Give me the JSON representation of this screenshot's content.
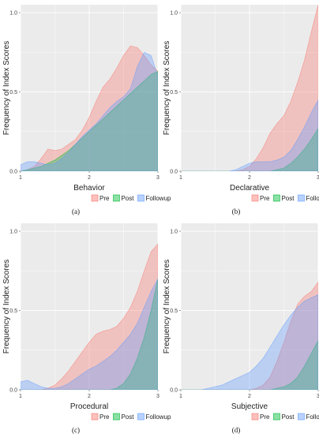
{
  "chart_data": [
    {
      "type": "area",
      "panel_label": "(a)",
      "xlabel": "Behavior",
      "ylabel": "Frequency of Index Scores",
      "xlim": [
        1,
        3
      ],
      "ylim": [
        0,
        1.05
      ],
      "x_ticks": [
        1,
        2,
        3
      ],
      "y_ticks": [
        "0.0",
        "0.5",
        "1.0"
      ],
      "legend": [
        "Pre",
        "Post",
        "Followup"
      ],
      "series": [
        {
          "name": "Pre",
          "color": "#f8766d",
          "x": [
            1.0,
            1.1,
            1.2,
            1.3,
            1.4,
            1.5,
            1.6,
            1.7,
            1.8,
            1.9,
            2.0,
            2.1,
            2.2,
            2.3,
            2.4,
            2.5,
            2.6,
            2.7,
            2.8,
            2.9,
            3.0
          ],
          "values": [
            0.0,
            0.01,
            0.03,
            0.08,
            0.14,
            0.13,
            0.14,
            0.17,
            0.2,
            0.26,
            0.34,
            0.44,
            0.53,
            0.58,
            0.65,
            0.73,
            0.79,
            0.78,
            0.73,
            0.67,
            0.63
          ]
        },
        {
          "name": "Post",
          "color": "#00ba38",
          "x": [
            1.0,
            1.1,
            1.2,
            1.3,
            1.4,
            1.5,
            1.6,
            1.7,
            1.8,
            1.9,
            2.0,
            2.1,
            2.2,
            2.3,
            2.4,
            2.5,
            2.6,
            2.7,
            2.8,
            2.9,
            3.0
          ],
          "values": [
            0.0,
            0.01,
            0.02,
            0.03,
            0.05,
            0.07,
            0.1,
            0.13,
            0.17,
            0.21,
            0.25,
            0.29,
            0.33,
            0.37,
            0.41,
            0.45,
            0.49,
            0.53,
            0.57,
            0.61,
            0.63
          ]
        },
        {
          "name": "Followup",
          "color": "#619cff",
          "x": [
            1.0,
            1.1,
            1.2,
            1.3,
            1.4,
            1.5,
            1.6,
            1.7,
            1.8,
            1.9,
            2.0,
            2.1,
            2.2,
            2.3,
            2.4,
            2.5,
            2.6,
            2.7,
            2.8,
            2.9,
            3.0
          ],
          "values": [
            0.04,
            0.06,
            0.06,
            0.05,
            0.04,
            0.05,
            0.08,
            0.12,
            0.17,
            0.22,
            0.26,
            0.3,
            0.35,
            0.4,
            0.44,
            0.47,
            0.52,
            0.66,
            0.75,
            0.73,
            0.6
          ]
        }
      ]
    },
    {
      "type": "area",
      "panel_label": "(b)",
      "xlabel": "Declarative",
      "ylabel": "Frequency of Index Scores",
      "xlim": [
        1,
        3
      ],
      "ylim": [
        0,
        1.05
      ],
      "x_ticks": [
        1,
        2,
        3
      ],
      "y_ticks": [
        "0.0",
        "0.5",
        "1.0"
      ],
      "legend": [
        "Pre",
        "Post",
        "Followup"
      ],
      "series": [
        {
          "name": "Pre",
          "color": "#f8766d",
          "x": [
            1.0,
            1.1,
            1.2,
            1.3,
            1.4,
            1.5,
            1.6,
            1.7,
            1.8,
            1.9,
            2.0,
            2.1,
            2.2,
            2.3,
            2.4,
            2.5,
            2.6,
            2.7,
            2.8,
            2.9,
            3.0
          ],
          "values": [
            0.0,
            0.0,
            0.0,
            0.0,
            0.0,
            0.0,
            0.0,
            0.0,
            0.0,
            0.01,
            0.03,
            0.08,
            0.15,
            0.24,
            0.3,
            0.35,
            0.44,
            0.56,
            0.7,
            0.88,
            1.05
          ]
        },
        {
          "name": "Post",
          "color": "#00ba38",
          "x": [
            1.0,
            1.1,
            1.2,
            1.3,
            1.4,
            1.5,
            1.6,
            1.7,
            1.8,
            1.9,
            2.0,
            2.1,
            2.2,
            2.3,
            2.4,
            2.5,
            2.6,
            2.7,
            2.8,
            2.9,
            3.0
          ],
          "values": [
            0.0,
            0.0,
            0.0,
            0.0,
            0.0,
            0.0,
            0.0,
            0.0,
            0.0,
            0.0,
            0.0,
            0.0,
            0.0,
            0.0,
            0.01,
            0.02,
            0.05,
            0.09,
            0.14,
            0.2,
            0.27
          ]
        },
        {
          "name": "Followup",
          "color": "#619cff",
          "x": [
            1.0,
            1.1,
            1.2,
            1.3,
            1.4,
            1.5,
            1.6,
            1.7,
            1.8,
            1.9,
            2.0,
            2.1,
            2.2,
            2.3,
            2.4,
            2.5,
            2.6,
            2.7,
            2.8,
            2.9,
            3.0
          ],
          "values": [
            0.0,
            0.0,
            0.0,
            0.0,
            0.0,
            0.0,
            0.0,
            0.0,
            0.01,
            0.03,
            0.05,
            0.06,
            0.06,
            0.06,
            0.07,
            0.09,
            0.13,
            0.2,
            0.28,
            0.37,
            0.45
          ]
        }
      ]
    },
    {
      "type": "area",
      "panel_label": "(c)",
      "xlabel": "Procedural",
      "ylabel": "Frequency of Index Scores",
      "xlim": [
        1,
        3
      ],
      "ylim": [
        0,
        1.05
      ],
      "x_ticks": [
        1,
        2,
        3
      ],
      "y_ticks": [
        "0.0",
        "0.5",
        "1.0"
      ],
      "legend": [
        "Pre",
        "Post",
        "Followup"
      ],
      "series": [
        {
          "name": "Pre",
          "color": "#f8766d",
          "x": [
            1.0,
            1.1,
            1.2,
            1.3,
            1.4,
            1.5,
            1.6,
            1.7,
            1.8,
            1.9,
            2.0,
            2.1,
            2.2,
            2.3,
            2.4,
            2.5,
            2.6,
            2.7,
            2.8,
            2.9,
            3.0
          ],
          "values": [
            0.0,
            0.0,
            0.0,
            0.0,
            0.01,
            0.03,
            0.07,
            0.12,
            0.18,
            0.24,
            0.3,
            0.35,
            0.37,
            0.38,
            0.4,
            0.45,
            0.52,
            0.62,
            0.75,
            0.87,
            0.92
          ]
        },
        {
          "name": "Post",
          "color": "#00ba38",
          "x": [
            1.0,
            1.1,
            1.2,
            1.3,
            1.4,
            1.5,
            1.6,
            1.7,
            1.8,
            1.9,
            2.0,
            2.1,
            2.2,
            2.3,
            2.4,
            2.5,
            2.6,
            2.7,
            2.8,
            2.9,
            3.0
          ],
          "values": [
            0.0,
            0.0,
            0.0,
            0.0,
            0.0,
            0.0,
            0.0,
            0.0,
            0.0,
            0.0,
            0.0,
            0.0,
            0.0,
            0.0,
            0.01,
            0.04,
            0.1,
            0.2,
            0.33,
            0.5,
            0.7
          ]
        },
        {
          "name": "Followup",
          "color": "#619cff",
          "x": [
            1.0,
            1.1,
            1.2,
            1.3,
            1.4,
            1.5,
            1.6,
            1.7,
            1.8,
            1.9,
            2.0,
            2.1,
            2.2,
            2.3,
            2.4,
            2.5,
            2.6,
            2.7,
            2.8,
            2.9,
            3.0
          ],
          "values": [
            0.05,
            0.06,
            0.04,
            0.02,
            0.01,
            0.01,
            0.02,
            0.04,
            0.07,
            0.1,
            0.13,
            0.15,
            0.18,
            0.21,
            0.25,
            0.3,
            0.35,
            0.42,
            0.52,
            0.62,
            0.7
          ]
        }
      ]
    },
    {
      "type": "area",
      "panel_label": "(d)",
      "xlabel": "Subjective",
      "ylabel": "Frequency of Index Scores",
      "xlim": [
        1,
        3
      ],
      "ylim": [
        0,
        1.05
      ],
      "x_ticks": [
        1,
        2,
        3
      ],
      "y_ticks": [
        "0.0",
        "0.5",
        "1.0"
      ],
      "legend": [
        "Pre",
        "Post",
        "Followup"
      ],
      "series": [
        {
          "name": "Pre",
          "color": "#f8766d",
          "x": [
            1.0,
            1.1,
            1.2,
            1.3,
            1.4,
            1.5,
            1.6,
            1.7,
            1.8,
            1.9,
            2.0,
            2.1,
            2.2,
            2.3,
            2.4,
            2.5,
            2.6,
            2.7,
            2.8,
            2.9,
            3.0
          ],
          "values": [
            0.0,
            0.0,
            0.0,
            0.0,
            0.0,
            0.0,
            0.0,
            0.0,
            0.0,
            0.0,
            0.0,
            0.01,
            0.03,
            0.08,
            0.18,
            0.3,
            0.43,
            0.54,
            0.59,
            0.62,
            0.68
          ]
        },
        {
          "name": "Post",
          "color": "#00ba38",
          "x": [
            1.0,
            1.1,
            1.2,
            1.3,
            1.4,
            1.5,
            1.6,
            1.7,
            1.8,
            1.9,
            2.0,
            2.1,
            2.2,
            2.3,
            2.4,
            2.5,
            2.6,
            2.7,
            2.8,
            2.9,
            3.0
          ],
          "values": [
            0.0,
            0.0,
            0.0,
            0.0,
            0.0,
            0.0,
            0.0,
            0.0,
            0.0,
            0.0,
            0.0,
            0.0,
            0.0,
            0.0,
            0.01,
            0.02,
            0.04,
            0.08,
            0.15,
            0.23,
            0.31
          ]
        },
        {
          "name": "Followup",
          "color": "#619cff",
          "x": [
            1.0,
            1.1,
            1.2,
            1.3,
            1.4,
            1.5,
            1.6,
            1.7,
            1.8,
            1.9,
            2.0,
            2.1,
            2.2,
            2.3,
            2.4,
            2.5,
            2.6,
            2.7,
            2.8,
            2.9,
            3.0
          ],
          "values": [
            0.0,
            0.0,
            0.0,
            0.0,
            0.01,
            0.02,
            0.03,
            0.05,
            0.07,
            0.09,
            0.11,
            0.15,
            0.2,
            0.27,
            0.34,
            0.41,
            0.47,
            0.52,
            0.56,
            0.58,
            0.6
          ]
        }
      ]
    }
  ]
}
